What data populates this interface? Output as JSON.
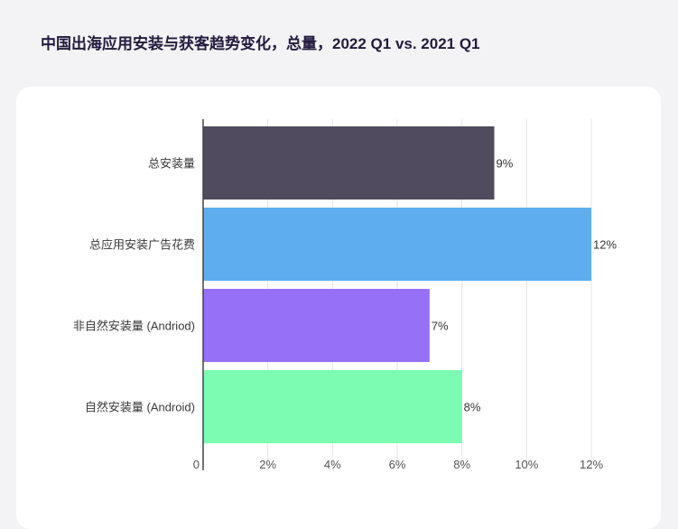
{
  "title": "中国出海应用安装与获客趋势变化，总量，2022 Q1 vs. 2021 Q1",
  "chart_data": {
    "type": "bar",
    "orientation": "horizontal",
    "categories": [
      "总安装量",
      "总应用安装广告花费",
      "非自然安装量 (Andriod)",
      "自然安装量 (Android)"
    ],
    "values": [
      9,
      12,
      7,
      8
    ],
    "value_labels": [
      "9%",
      "12%",
      "7%",
      "8%"
    ],
    "colors": [
      "#504b5e",
      "#5eaeef",
      "#9670f6",
      "#7bfcb2"
    ],
    "x_ticks": [
      "0",
      "2%",
      "4%",
      "6%",
      "8%",
      "10%",
      "12%"
    ],
    "x_tick_values": [
      0,
      2,
      4,
      6,
      8,
      10,
      12
    ],
    "xlim": [
      0,
      12
    ],
    "grid": true,
    "xlabel": "",
    "ylabel": ""
  }
}
